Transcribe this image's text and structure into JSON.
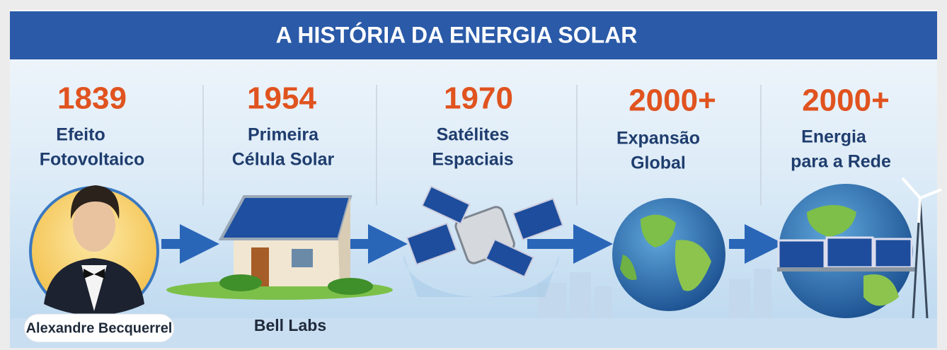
{
  "header": {
    "title": "A HISTÓRIA DA ENERGIA SOLAR"
  },
  "timeline": [
    {
      "year": "1839",
      "lines": [
        "Efeito",
        "Fotovoltaico"
      ],
      "caption": "Alexandre Becquerrel"
    },
    {
      "year": "1954",
      "lines": [
        "Primeira",
        "Célula Solar"
      ],
      "caption": "Bell Labs"
    },
    {
      "year": "1970",
      "lines": [
        "Satélites",
        "Espaciais"
      ]
    },
    {
      "year": "2000+",
      "lines": [
        "Expansão",
        "Global"
      ]
    },
    {
      "year": "2000+",
      "lines": [
        "Energia",
        "para a Rede"
      ]
    }
  ]
}
